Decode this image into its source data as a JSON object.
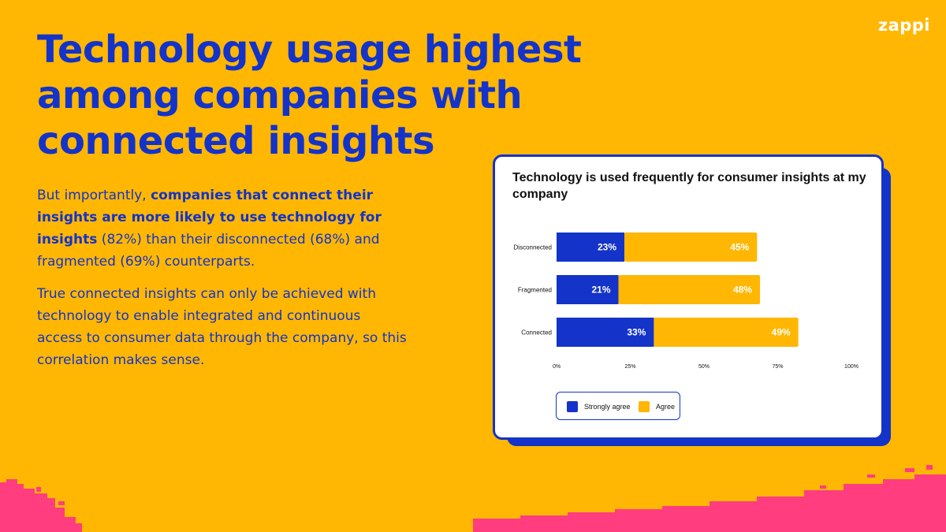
{
  "brand": {
    "logo": "zappi"
  },
  "headline": "Technology usage highest among companies with connected insights",
  "body": {
    "p1_pre": "But importantly, ",
    "p1_bold": "companies that connect their insights are more likely to use technology for insights",
    "p1_post": " (82%) than their disconnected (68%) and fragmented (69%) counterparts.",
    "p2": "True connected insights can only be achieved with technology to enable integrated and continuous access to consumer data through the company, so this correlation makes sense."
  },
  "colors": {
    "background": "#FFB703",
    "primary": "#1433C8",
    "strongly_agree": "#1433C8",
    "agree": "#FFB703",
    "accent_pink": "#FF3D7F"
  },
  "chart_data": {
    "type": "bar",
    "orientation": "horizontal",
    "stacked": true,
    "title": "Technology is used frequently for consumer insights at my company",
    "categories": [
      "Disconnected",
      "Fragmented",
      "Connected"
    ],
    "series": [
      {
        "name": "Strongly agree",
        "values": [
          23,
          21,
          33
        ],
        "labels": [
          "23%",
          "21%",
          "33%"
        ]
      },
      {
        "name": "Agree",
        "values": [
          45,
          48,
          49
        ],
        "labels": [
          "45%",
          "48%",
          "49%"
        ]
      }
    ],
    "xlim": [
      0,
      100
    ],
    "xticks": [
      "0%",
      "25%",
      "50%",
      "75%",
      "100%"
    ],
    "grid": false,
    "legend_placement": "bottom-left"
  }
}
